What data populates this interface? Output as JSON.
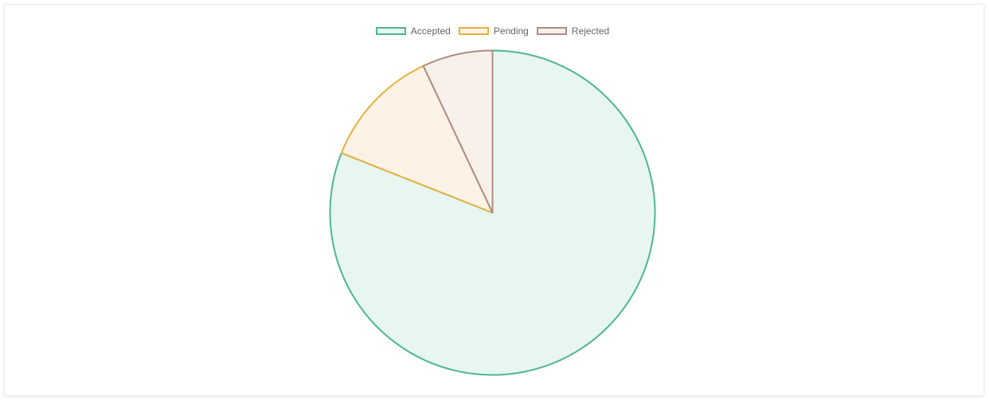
{
  "chart_data": {
    "type": "pie",
    "categories": [
      "Accepted",
      "Pending",
      "Rejected"
    ],
    "values": [
      81,
      12,
      7
    ],
    "legend_position": "top-center",
    "colors": {
      "Accepted": {
        "border": "#4fb68e",
        "fill": "#e7f6f1"
      },
      "Pending": {
        "border": "#e6b13d",
        "fill": "#fcf3e6"
      },
      "Rejected": {
        "border": "#b08a84",
        "fill": "#f8f1ea"
      }
    }
  }
}
